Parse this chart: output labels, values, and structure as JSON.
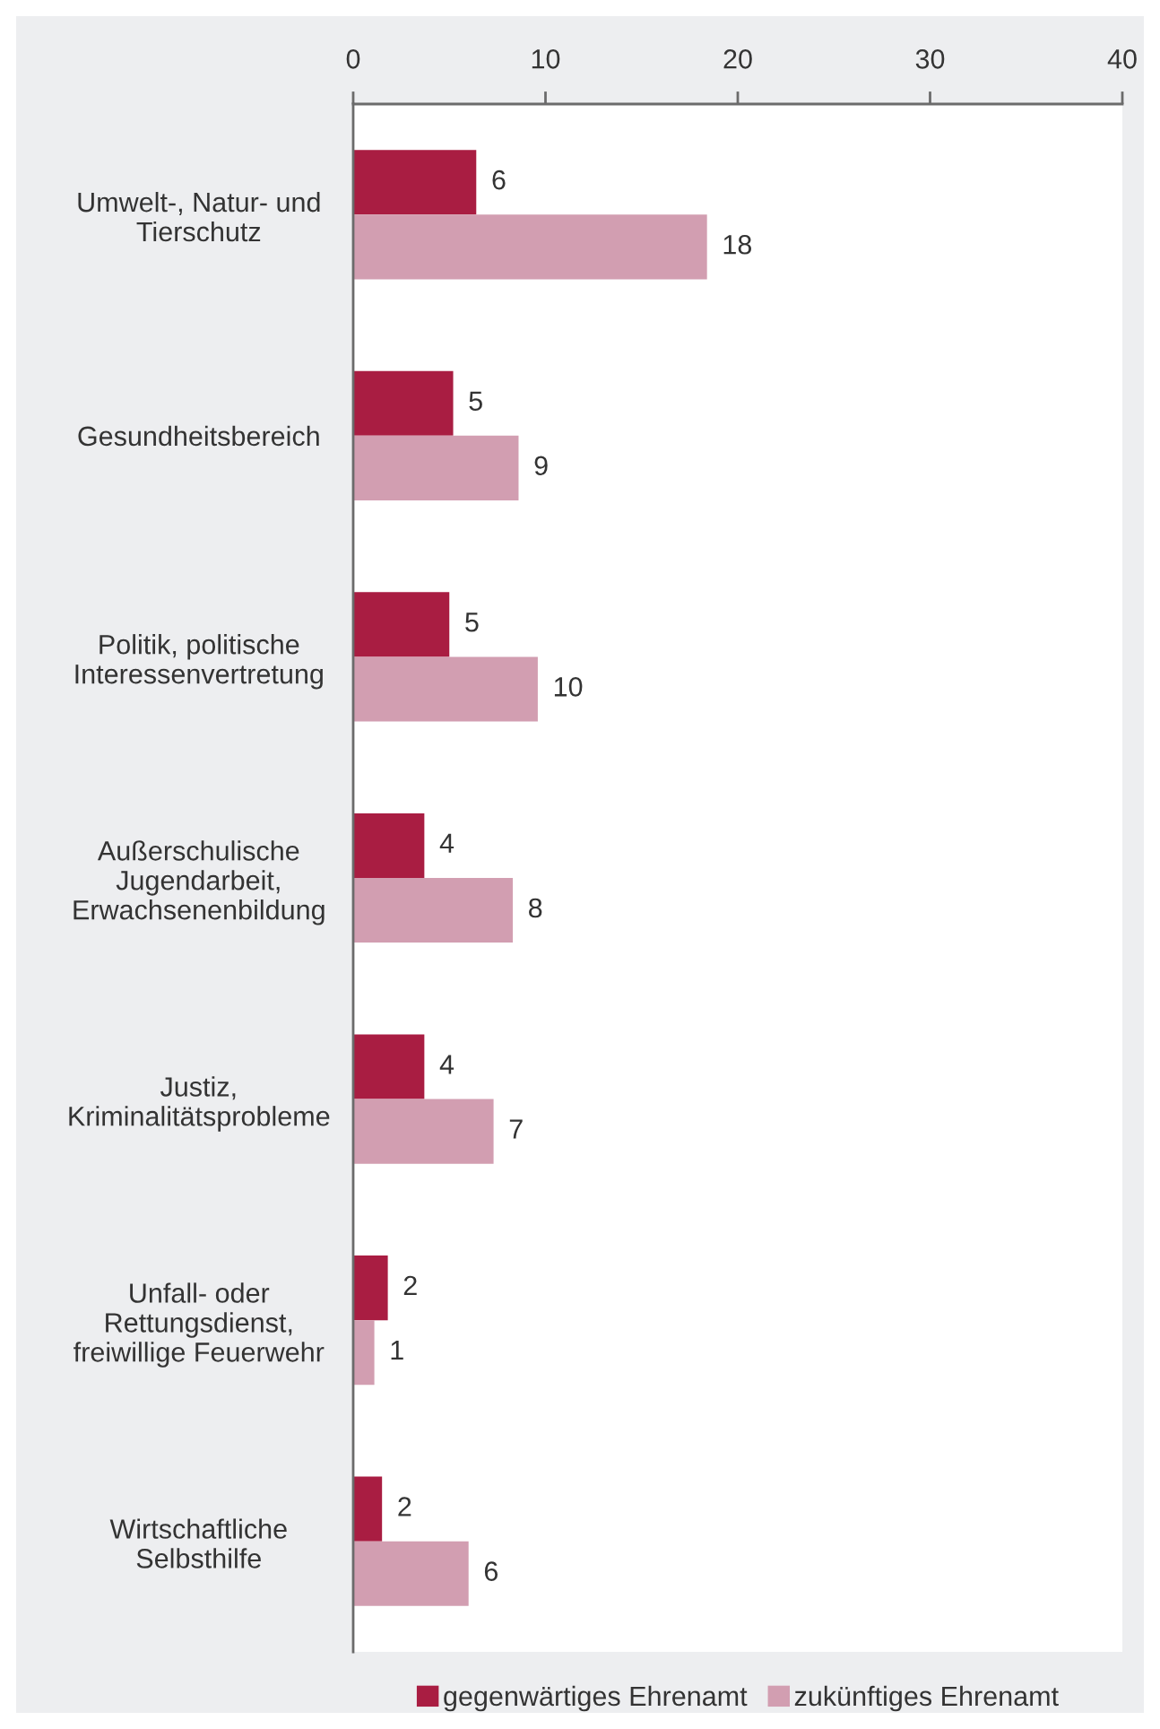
{
  "chart_data": {
    "type": "bar",
    "orientation": "horizontal",
    "categories": [
      "Umwelt-, Natur- und\nTierschutz",
      "Gesundheitsbereich",
      "Politik, politische\nInteressenvertretung",
      "Außerschulische\nJugendarbeit,\nErwachsenenbildung",
      "Justiz,\nKriminalitätsprobleme",
      "Unfall- oder\nRettungsdienst,\nfreiwillige Feuerwehr",
      "Wirtschaftliche\nSelbsthilfe"
    ],
    "series": [
      {
        "name": "gegenwärtiges Ehrenamt",
        "color": "#a91d42",
        "values": [
          6.4,
          5.2,
          5.0,
          3.7,
          3.7,
          1.8,
          1.5
        ],
        "value_labels": [
          "6",
          "5",
          "5",
          "4",
          "4",
          "2",
          "2"
        ]
      },
      {
        "name": "zukünftiges Ehrenamt",
        "color": "#d29eb1",
        "values": [
          18.4,
          8.6,
          9.6,
          8.3,
          7.3,
          1.1,
          6.0
        ],
        "value_labels": [
          "18",
          "9",
          "10",
          "8",
          "7",
          "1",
          "6"
        ]
      }
    ],
    "xlim": [
      0,
      40
    ],
    "xticks": [
      0,
      10,
      20,
      30,
      40
    ],
    "legend": "bottom"
  }
}
